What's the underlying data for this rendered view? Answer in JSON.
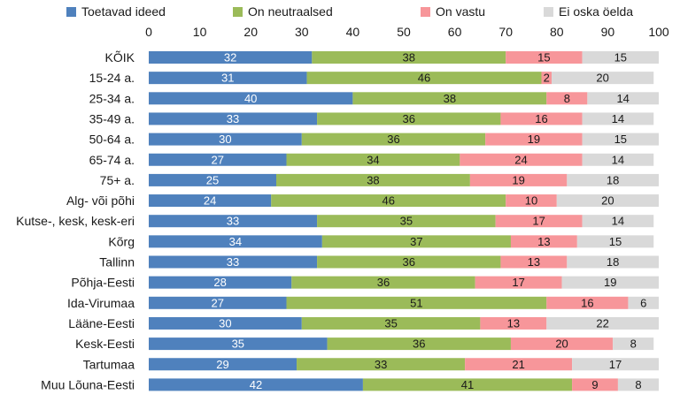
{
  "chart_data": {
    "type": "bar",
    "orientation": "horizontal",
    "stacked": true,
    "title": "",
    "xlabel": "",
    "ylabel": "",
    "xlim": [
      0,
      100
    ],
    "x_ticks": [
      0,
      10,
      20,
      30,
      40,
      50,
      60,
      70,
      80,
      90,
      100
    ],
    "grid": false,
    "legend_position": "top",
    "categories": [
      "KÕIK",
      "15-24 a.",
      "25-34 a.",
      "35-49 a.",
      "50-64 a.",
      "65-74 a.",
      "75+ a.",
      "Alg- või põhi",
      "Kutse-, kesk, kesk-eri",
      "Kõrg",
      "Tallinn",
      "Põhja-Eesti",
      "Ida-Virumaa",
      "Lääne-Eesti",
      "Kesk-Eesti",
      "Tartumaa",
      "Muu Lõuna-Eesti"
    ],
    "series": [
      {
        "name": "Toetavad ideed",
        "color": "#4F81BD",
        "label_color": "#ffffff",
        "values": [
          32,
          31,
          40,
          33,
          30,
          27,
          25,
          24,
          33,
          34,
          33,
          28,
          27,
          30,
          35,
          29,
          42
        ]
      },
      {
        "name": "On neutraalsed",
        "color": "#9BBB59",
        "label_color": "#1a1a1a",
        "values": [
          38,
          46,
          38,
          36,
          36,
          34,
          38,
          46,
          35,
          37,
          36,
          36,
          51,
          35,
          36,
          33,
          41
        ]
      },
      {
        "name": "On vastu",
        "color": "#F7969A",
        "label_color": "#1a1a1a",
        "values": [
          15,
          2,
          8,
          16,
          19,
          24,
          19,
          10,
          17,
          13,
          13,
          17,
          16,
          13,
          20,
          21,
          9
        ]
      },
      {
        "name": "Ei oska öelda",
        "color": "#D9D9D9",
        "label_color": "#1a1a1a",
        "values": [
          15,
          20,
          14,
          14,
          15,
          14,
          18,
          20,
          14,
          15,
          18,
          19,
          6,
          22,
          8,
          17,
          8
        ]
      }
    ]
  }
}
